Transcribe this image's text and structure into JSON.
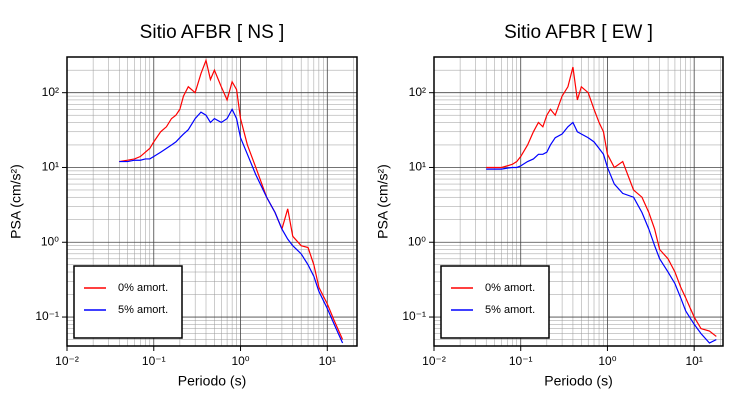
{
  "chart_data": [
    {
      "type": "line",
      "title": "Sitio AFBR [ NS ]",
      "x_label": "Periodo (s)",
      "y_label": "PSA (cm/s²)",
      "x_log": true,
      "y_log": true,
      "grid": true,
      "minor_grid": true,
      "legend": "lower left",
      "xlim": [
        0.01,
        22
      ],
      "ylim": [
        0.041,
        300
      ],
      "xticks": [
        {
          "value": 0.01,
          "label": "10⁻²"
        },
        {
          "value": 0.1,
          "label": "10⁻¹"
        },
        {
          "value": 1,
          "label": "10⁰"
        },
        {
          "value": 10,
          "label": "10¹"
        }
      ],
      "yticks": [
        {
          "value": 0.1,
          "label": "10⁻¹"
        },
        {
          "value": 1,
          "label": "10⁰"
        },
        {
          "value": 10,
          "label": "10¹"
        },
        {
          "value": 100,
          "label": "10²"
        }
      ],
      "x": [
        0.04,
        0.05,
        0.06,
        0.07,
        0.08,
        0.09,
        0.1,
        0.12,
        0.14,
        0.16,
        0.18,
        0.2,
        0.22,
        0.25,
        0.3,
        0.35,
        0.4,
        0.45,
        0.5,
        0.6,
        0.7,
        0.8,
        0.9,
        1.0,
        1.2,
        1.5,
        2.0,
        2.5,
        3.0,
        3.5,
        4.0,
        5.0,
        6.0,
        7.0,
        8.0,
        10,
        12,
        15
      ],
      "series": [
        {
          "name": "0% amort.",
          "color": "#ff0000",
          "values": [
            12,
            12.5,
            13,
            14,
            16,
            18,
            22,
            30,
            35,
            45,
            50,
            60,
            90,
            120,
            100,
            180,
            270,
            150,
            200,
            120,
            80,
            140,
            110,
            45,
            20,
            10,
            4,
            2.5,
            1.5,
            2.8,
            1.2,
            0.9,
            0.85,
            0.5,
            0.25,
            0.15,
            0.09,
            0.05
          ]
        },
        {
          "name": "5% amort.",
          "color": "#0000ff",
          "values": [
            12,
            12,
            12.5,
            12.5,
            13,
            13,
            14,
            16,
            18,
            20,
            22,
            25,
            28,
            32,
            45,
            55,
            50,
            40,
            45,
            40,
            45,
            60,
            45,
            25,
            15,
            8,
            4,
            2.5,
            1.5,
            1.1,
            0.9,
            0.7,
            0.5,
            0.35,
            0.22,
            0.13,
            0.08,
            0.045
          ]
        }
      ]
    },
    {
      "type": "line",
      "title": "Sitio AFBR [ EW ]",
      "x_label": "Periodo (s)",
      "y_label": "PSA (cm/s²)",
      "x_log": true,
      "y_log": true,
      "grid": true,
      "minor_grid": true,
      "legend": "lower left",
      "xlim": [
        0.01,
        21.5
      ],
      "ylim": [
        0.041,
        300
      ],
      "xticks": [
        {
          "value": 0.01,
          "label": "10⁻²"
        },
        {
          "value": 0.1,
          "label": "10⁻¹"
        },
        {
          "value": 1,
          "label": "10⁰"
        },
        {
          "value": 10,
          "label": "10¹"
        }
      ],
      "yticks": [
        {
          "value": 0.1,
          "label": "10⁻¹"
        },
        {
          "value": 1,
          "label": "10⁰"
        },
        {
          "value": 10,
          "label": "10¹"
        },
        {
          "value": 100,
          "label": "10²"
        }
      ],
      "x": [
        0.04,
        0.05,
        0.06,
        0.07,
        0.08,
        0.09,
        0.1,
        0.12,
        0.14,
        0.16,
        0.18,
        0.2,
        0.22,
        0.25,
        0.3,
        0.35,
        0.4,
        0.45,
        0.5,
        0.6,
        0.7,
        0.8,
        0.9,
        1.0,
        1.2,
        1.5,
        2.0,
        2.5,
        3.0,
        3.5,
        4.0,
        5.0,
        6.0,
        7.0,
        8.0,
        10,
        12,
        15,
        18
      ],
      "series": [
        {
          "name": "0% amort.",
          "color": "#ff0000",
          "values": [
            10,
            10,
            10,
            10.5,
            11,
            12,
            14,
            20,
            30,
            40,
            35,
            50,
            60,
            50,
            90,
            120,
            220,
            80,
            120,
            100,
            60,
            40,
            30,
            15,
            10,
            12,
            5,
            4,
            2.5,
            1.5,
            0.8,
            0.6,
            0.4,
            0.25,
            0.18,
            0.1,
            0.07,
            0.065,
            0.055
          ]
        },
        {
          "name": "5% amort.",
          "color": "#0000ff",
          "values": [
            9.5,
            9.5,
            9.5,
            9.8,
            10,
            10,
            10.5,
            12,
            13,
            15,
            15,
            16,
            20,
            25,
            28,
            35,
            40,
            30,
            28,
            25,
            22,
            18,
            15,
            10,
            6,
            4.5,
            4,
            2.5,
            1.5,
            0.9,
            0.6,
            0.4,
            0.28,
            0.18,
            0.12,
            0.08,
            0.06,
            0.045,
            0.05
          ]
        }
      ]
    }
  ]
}
